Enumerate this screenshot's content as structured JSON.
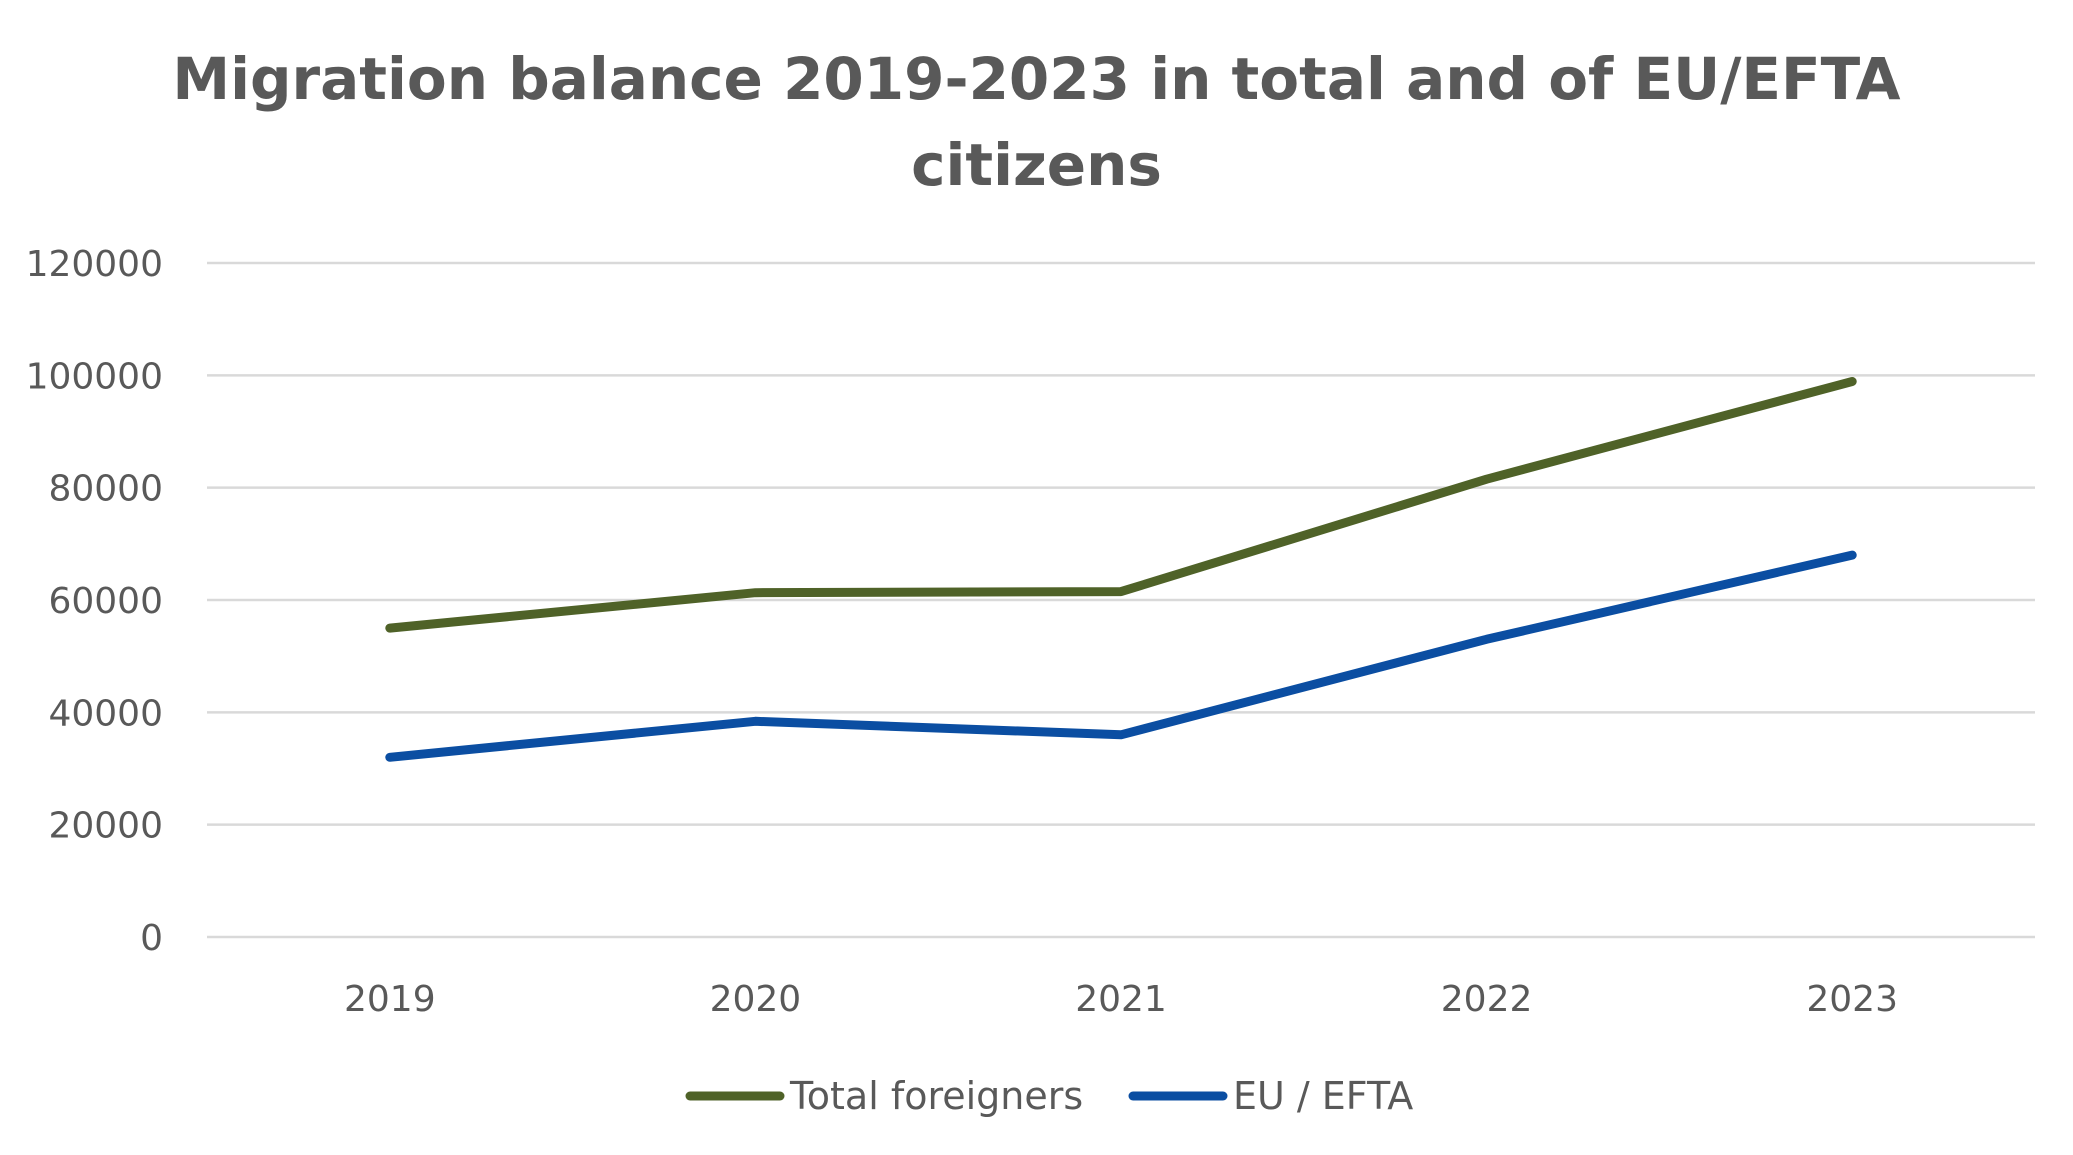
{
  "chart_data": {
    "type": "line",
    "title_lines": [
      "Migration balance 2019-2023 in total and of EU/EFTA",
      "citizens"
    ],
    "categories": [
      "2019",
      "2020",
      "2021",
      "2022",
      "2023"
    ],
    "yticks": [
      "0",
      "20000",
      "40000",
      "60000",
      "80000",
      "100000",
      "120000"
    ],
    "ylim": [
      0,
      120000
    ],
    "grid": true,
    "legend_position": "bottom",
    "series": [
      {
        "name": "Total foreigners",
        "color": "#4F6228",
        "values": [
          55000,
          61300,
          61500,
          81500,
          98900
        ]
      },
      {
        "name": "EU / EFTA",
        "color": "#0B4EA2",
        "values": [
          32000,
          38400,
          36000,
          53000,
          68000
        ]
      }
    ],
    "gridline_color": "#D9D9D9"
  }
}
